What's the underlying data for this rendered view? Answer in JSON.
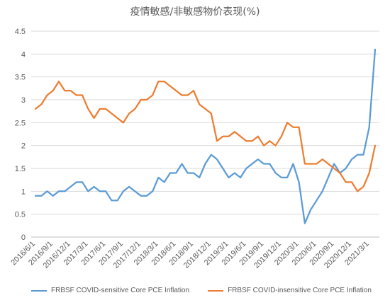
{
  "chart_data": {
    "type": "line",
    "title": "疫情敏感/非敏感物价表现(%)",
    "xlabel": "",
    "ylabel": "",
    "ylim": [
      0,
      4.5
    ],
    "yticks": [
      "0",
      "0.5",
      "1",
      "1.5",
      "2",
      "2.5",
      "3",
      "3.5",
      "4",
      "4.5"
    ],
    "xtick_labels": [
      "2016/6/1",
      "2016/9/1",
      "2016/12/1",
      "2017/3/1",
      "2017/6/1",
      "2017/9/1",
      "2017/12/1",
      "2018/3/1",
      "2018/6/1",
      "2018/9/1",
      "2018/12/1",
      "2019/3/1",
      "2019/6/1",
      "2019/9/1",
      "2019/12/1",
      "2020/3/1",
      "2020/6/1",
      "2020/9/1",
      "2020/12/1",
      "2021/3/1"
    ],
    "x_start": "2016/6/1",
    "x_end": "2021/4/1",
    "grid": "horizontal",
    "legend_position": "bottom",
    "series": [
      {
        "name": "FRBSF COVID-sensitive Core PCE Inflation",
        "color": "#5B9BD5",
        "values": [
          0.9,
          0.9,
          1.0,
          0.9,
          1.0,
          1.0,
          1.1,
          1.2,
          1.2,
          1.0,
          1.1,
          1.0,
          1.0,
          0.8,
          0.8,
          1.0,
          1.1,
          1.0,
          0.9,
          0.9,
          1.0,
          1.3,
          1.2,
          1.4,
          1.4,
          1.6,
          1.4,
          1.4,
          1.3,
          1.6,
          1.8,
          1.7,
          1.5,
          1.3,
          1.4,
          1.3,
          1.5,
          1.6,
          1.7,
          1.6,
          1.6,
          1.4,
          1.3,
          1.3,
          1.6,
          1.2,
          0.3,
          0.6,
          0.8,
          1.0,
          1.3,
          1.6,
          1.4,
          1.5,
          1.7,
          1.8,
          1.8,
          2.4,
          4.1
        ]
      },
      {
        "name": "FRBSF COVID-insensitive Core PCE Inflation",
        "color": "#ED7D31",
        "values": [
          2.8,
          2.9,
          3.1,
          3.2,
          3.4,
          3.2,
          3.2,
          3.1,
          3.1,
          2.8,
          2.6,
          2.8,
          2.8,
          2.7,
          2.6,
          2.5,
          2.7,
          2.8,
          3.0,
          3.0,
          3.1,
          3.4,
          3.4,
          3.3,
          3.2,
          3.1,
          3.1,
          3.2,
          2.9,
          2.8,
          2.7,
          2.1,
          2.2,
          2.2,
          2.3,
          2.2,
          2.1,
          2.1,
          2.2,
          2.0,
          2.1,
          2.0,
          2.2,
          2.5,
          2.4,
          2.4,
          1.6,
          1.6,
          1.6,
          1.7,
          1.6,
          1.5,
          1.4,
          1.2,
          1.2,
          1.0,
          1.1,
          1.4,
          2.0
        ]
      }
    ]
  }
}
